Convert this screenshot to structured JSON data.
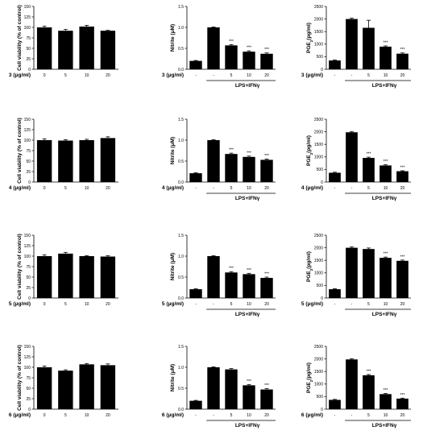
{
  "figure": {
    "chart_data": [
      {
        "type": "bar",
        "row": 0,
        "col": 0,
        "compound": "3",
        "ylabel": "Cell viability (% of control)",
        "xprefix": "3 (μg/ml)",
        "categories": [
          "0",
          "5",
          "10",
          "20"
        ],
        "values": [
          100,
          92,
          102,
          92
        ],
        "errors": [
          3,
          3,
          3,
          1
        ],
        "significance": [
          "",
          "",
          "",
          ""
        ],
        "ylim": [
          0,
          150
        ],
        "yticks": [
          0,
          25,
          50,
          75,
          100,
          125,
          150
        ],
        "group_label": ""
      },
      {
        "type": "bar",
        "row": 0,
        "col": 1,
        "compound": "3",
        "ylabel": "Nitrite (μM)",
        "xprefix": "3 (μg/ml)",
        "categories": [
          "-",
          "-",
          "5",
          "10",
          "20"
        ],
        "values": [
          0.2,
          1.0,
          0.57,
          0.42,
          0.37
        ],
        "errors": [
          0.01,
          0.01,
          0.02,
          0.02,
          0.02
        ],
        "significance": [
          "",
          "",
          "***",
          "***",
          "***"
        ],
        "ylim": [
          0,
          1.5
        ],
        "yticks": [
          0.0,
          0.5,
          1.0,
          1.5
        ],
        "group_label": "LPS+IFNγ"
      },
      {
        "type": "bar",
        "row": 0,
        "col": 2,
        "compound": "3",
        "ylabel": "PGE2(pg/ml)",
        "xprefix": "3 (μg/ml)",
        "categories": [
          "-",
          "-",
          "5",
          "10",
          "20"
        ],
        "values": [
          350,
          2000,
          1650,
          900,
          620
        ],
        "errors": [
          20,
          30,
          300,
          30,
          30
        ],
        "significance": [
          "",
          "",
          "",
          "***",
          "***"
        ],
        "ylim": [
          0,
          2500
        ],
        "yticks": [
          0,
          500,
          1000,
          1500,
          2000,
          2500
        ],
        "group_label": "LPS+IFNγ"
      },
      {
        "type": "bar",
        "row": 1,
        "col": 0,
        "compound": "4",
        "ylabel": "Cell viability (% of control)",
        "xprefix": "4 (μg/ml)",
        "categories": [
          "0",
          "5",
          "10",
          "20"
        ],
        "values": [
          100,
          99,
          100,
          105
        ],
        "errors": [
          3,
          2,
          2,
          3
        ],
        "significance": [
          "",
          "",
          "",
          ""
        ],
        "ylim": [
          0,
          150
        ],
        "yticks": [
          0,
          25,
          50,
          75,
          100,
          125,
          150
        ],
        "group_label": ""
      },
      {
        "type": "bar",
        "row": 1,
        "col": 1,
        "compound": "4",
        "ylabel": "Nitrite (μM)",
        "xprefix": "4 (μg/ml)",
        "categories": [
          "-",
          "-",
          "5",
          "10",
          "20"
        ],
        "values": [
          0.21,
          1.0,
          0.67,
          0.6,
          0.53
        ],
        "errors": [
          0.01,
          0.01,
          0.02,
          0.02,
          0.02
        ],
        "significance": [
          "",
          "",
          "***",
          "***",
          "***"
        ],
        "ylim": [
          0,
          1.5
        ],
        "yticks": [
          0.0,
          0.5,
          1.0,
          1.5
        ],
        "group_label": "LPS+IFNγ"
      },
      {
        "type": "bar",
        "row": 1,
        "col": 2,
        "compound": "4",
        "ylabel": "PGE2(pg/ml)",
        "xprefix": "4 (μg/ml)",
        "categories": [
          "-",
          "-",
          "5",
          "10",
          "20"
        ],
        "values": [
          370,
          1980,
          960,
          660,
          430
        ],
        "errors": [
          20,
          30,
          30,
          25,
          20
        ],
        "significance": [
          "",
          "",
          "***",
          "***",
          "***"
        ],
        "ylim": [
          0,
          2500
        ],
        "yticks": [
          0,
          500,
          1000,
          1500,
          2000,
          2500
        ],
        "group_label": "LPS+IFNγ"
      },
      {
        "type": "bar",
        "row": 2,
        "col": 0,
        "compound": "5",
        "ylabel": "Cell viability (% of control)",
        "xprefix": "5 (μg/ml)",
        "categories": [
          "0",
          "5",
          "10",
          "20"
        ],
        "values": [
          100,
          106,
          100,
          99
        ],
        "errors": [
          3,
          3,
          1,
          2
        ],
        "significance": [
          "",
          "",
          "",
          ""
        ],
        "ylim": [
          0,
          150
        ],
        "yticks": [
          0,
          25,
          50,
          75,
          100,
          125,
          150
        ],
        "group_label": ""
      },
      {
        "type": "bar",
        "row": 2,
        "col": 1,
        "compound": "5",
        "ylabel": "Nitrite (μM)",
        "xprefix": "5 (μg/ml)",
        "categories": [
          "-",
          "-",
          "5",
          "10",
          "20"
        ],
        "values": [
          0.21,
          1.0,
          0.61,
          0.57,
          0.48
        ],
        "errors": [
          0.01,
          0.01,
          0.02,
          0.02,
          0.02
        ],
        "significance": [
          "",
          "",
          "***",
          "***",
          "***"
        ],
        "ylim": [
          0,
          1.5
        ],
        "yticks": [
          0.0,
          0.5,
          1.0,
          1.5
        ],
        "group_label": "LPS+IFNγ"
      },
      {
        "type": "bar",
        "row": 2,
        "col": 2,
        "compound": "5",
        "ylabel": "PGE2(pg/ml)",
        "xprefix": "5 (μg/ml)",
        "categories": [
          "-",
          "-",
          "5",
          "10",
          "20"
        ],
        "values": [
          350,
          2000,
          1950,
          1600,
          1480
        ],
        "errors": [
          20,
          30,
          40,
          30,
          30
        ],
        "significance": [
          "",
          "",
          "",
          "***",
          "***"
        ],
        "ylim": [
          0,
          2500
        ],
        "yticks": [
          0,
          500,
          1000,
          1500,
          2000,
          2500
        ],
        "group_label": "LPS+IFNγ"
      },
      {
        "type": "bar",
        "row": 3,
        "col": 0,
        "compound": "6",
        "ylabel": "Cell viability (% of control)",
        "xprefix": "6 (μg/ml)",
        "categories": [
          "0",
          "5",
          "10",
          "20"
        ],
        "values": [
          100,
          92,
          107,
          105
        ],
        "errors": [
          3,
          2,
          2,
          3
        ],
        "significance": [
          "",
          "",
          "",
          ""
        ],
        "ylim": [
          0,
          150
        ],
        "yticks": [
          0,
          25,
          50,
          75,
          100,
          125,
          150
        ],
        "group_label": ""
      },
      {
        "type": "bar",
        "row": 3,
        "col": 1,
        "compound": "6",
        "ylabel": "Nitrite (μM)",
        "xprefix": "6 (μg/ml)",
        "categories": [
          "-",
          "-",
          "5",
          "10",
          "20"
        ],
        "values": [
          0.2,
          1.0,
          0.95,
          0.57,
          0.47
        ],
        "errors": [
          0.01,
          0.01,
          0.02,
          0.02,
          0.02
        ],
        "significance": [
          "",
          "",
          "",
          "***",
          "***"
        ],
        "ylim": [
          0,
          1.5
        ],
        "yticks": [
          0.0,
          0.5,
          1.0,
          1.5
        ],
        "group_label": "LPS+IFNγ"
      },
      {
        "type": "bar",
        "row": 3,
        "col": 2,
        "compound": "6",
        "ylabel": "PGE2(pg/ml)",
        "xprefix": "6 (μg/ml)",
        "categories": [
          "-",
          "-",
          "5",
          "10",
          "20"
        ],
        "values": [
          370,
          1980,
          1350,
          600,
          420
        ],
        "errors": [
          20,
          30,
          30,
          25,
          20
        ],
        "significance": [
          "",
          "",
          "***",
          "***",
          "***"
        ],
        "ylim": [
          0,
          2500
        ],
        "yticks": [
          0,
          500,
          1000,
          1500,
          2000,
          2500
        ],
        "group_label": "LPS+IFNγ"
      }
    ]
  }
}
